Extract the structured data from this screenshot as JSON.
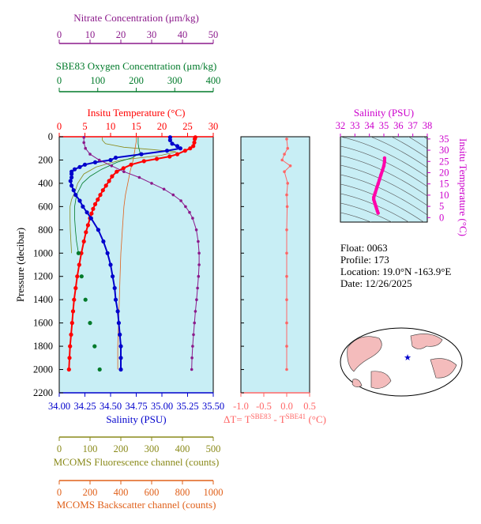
{
  "colors": {
    "nitrate": "#8b1a8b",
    "oxygen": "#007a2a",
    "temperature": "#ff0000",
    "salinity": "#0000cc",
    "fluorescence": "#8a8a1a",
    "backscatter": "#e0601a",
    "delta": "#ff6666",
    "plot_bg": "#c8eef5",
    "ts_curve": "#ff00aa",
    "ts_axes": "#cc00cc",
    "land": "#f4bcbc"
  },
  "info": {
    "float_line": "Float:  0063",
    "profile_line": "Profile:  173",
    "location_line": "Location:  19.0°N  -163.9°E",
    "date_line": "Date:  12/26/2025"
  },
  "chart_data": [
    {
      "type": "line",
      "title": "",
      "ylabel": "Pressure (decibar)",
      "ylim": [
        2200,
        0
      ],
      "yticks": [
        "0",
        "200",
        "400",
        "600",
        "800",
        "1000",
        "1200",
        "1400",
        "1600",
        "1800",
        "2000",
        "2200"
      ],
      "axes": {
        "temperature": {
          "label": "Insitu Temperature (°C)",
          "ticks": [
            "0",
            "5",
            "10",
            "15",
            "20",
            "25",
            "30"
          ],
          "range": [
            0,
            30
          ]
        },
        "salinity": {
          "label": "Salinity (PSU)",
          "ticks": [
            "34.00",
            "34.25",
            "34.50",
            "34.75",
            "35.00",
            "35.25",
            "35.50"
          ],
          "range": [
            34.0,
            35.5
          ]
        },
        "nitrate": {
          "label": "Nitrate Concentration (μm/kg)",
          "ticks": [
            "0",
            "10",
            "20",
            "30",
            "40",
            "50"
          ],
          "range": [
            0,
            50
          ]
        },
        "oxygen": {
          "label": "SBE83 Oxygen Concentration (μm/kg)",
          "ticks": [
            "0",
            "100",
            "200",
            "300",
            "400"
          ],
          "range": [
            0,
            400
          ]
        },
        "fluorescence": {
          "label": "MCOMS Fluorescence channel (counts)",
          "ticks": [
            "0",
            "100",
            "200",
            "300",
            "400",
            "500"
          ],
          "range": [
            0,
            500
          ]
        },
        "backscatter": {
          "label": "MCOMS Backscatter channel (counts)",
          "ticks": [
            "0",
            "200",
            "400",
            "600",
            "800",
            "1000"
          ],
          "range": [
            0,
            1000
          ]
        }
      },
      "series": [
        {
          "key": "temperature",
          "pressure": [
            5,
            20,
            50,
            80,
            100,
            120,
            150,
            170,
            190,
            210,
            240,
            270,
            300,
            340,
            380,
            420,
            460,
            500,
            540,
            580,
            620,
            660,
            700,
            760,
            820,
            900,
            1000,
            1100,
            1200,
            1300,
            1400,
            1500,
            1600,
            1700,
            1800,
            1900,
            2000
          ],
          "values": [
            26.5,
            26.4,
            26.3,
            26.1,
            25.5,
            24.5,
            23,
            21.5,
            19,
            16.5,
            14,
            12.5,
            11.2,
            10.3,
            9.7,
            9.1,
            8.5,
            8.0,
            7.5,
            7.0,
            6.6,
            6.3,
            6.0,
            5.6,
            5.2,
            4.8,
            4.3,
            3.9,
            3.5,
            3.2,
            2.9,
            2.7,
            2.5,
            2.3,
            2.1,
            2.0,
            1.9
          ]
        },
        {
          "key": "salinity",
          "pressure": [
            5,
            30,
            60,
            80,
            100,
            120,
            150,
            180,
            200,
            220,
            240,
            260,
            280,
            300,
            320,
            350,
            380,
            420,
            460,
            500,
            550,
            600,
            650,
            700,
            800,
            900,
            1000,
            1100,
            1200,
            1300,
            1400,
            1500,
            1600,
            1700,
            1800,
            1900,
            2000
          ],
          "values": [
            35.08,
            35.08,
            35.1,
            35.15,
            35.18,
            35.05,
            34.8,
            34.55,
            34.5,
            34.35,
            34.25,
            34.2,
            34.15,
            34.12,
            34.12,
            34.12,
            34.11,
            34.12,
            34.14,
            34.16,
            34.2,
            34.23,
            34.27,
            34.31,
            34.38,
            34.43,
            34.47,
            34.5,
            34.52,
            34.54,
            34.55,
            34.57,
            34.58,
            34.59,
            34.6,
            34.6,
            34.6
          ]
        },
        {
          "key": "nitrate",
          "pressure": [
            5,
            50,
            100,
            150,
            200,
            250,
            300,
            350,
            400,
            450,
            500,
            550,
            600,
            650,
            700,
            800,
            900,
            1000,
            1100,
            1200,
            1300,
            1400,
            1500,
            1600,
            1700,
            1800,
            1900,
            2000
          ],
          "values": [
            8,
            8,
            8.5,
            10,
            13,
            17,
            21,
            26,
            30,
            34,
            37,
            39.5,
            41,
            42.3,
            43.3,
            44.5,
            45.1,
            45.4,
            45.4,
            45.2,
            44.9,
            44.6,
            44.2,
            43.9,
            43.6,
            43.3,
            43.1,
            43.0
          ]
        },
        {
          "key": "oxygen",
          "pressure": [
            1000,
            1200,
            1400,
            1600,
            1800,
            2000
          ],
          "values": [
            50,
            58,
            68,
            80,
            92,
            105
          ]
        },
        {
          "key": "delta",
          "pressure": [
            20,
            100,
            150,
            200,
            250,
            300,
            400,
            500,
            600,
            800,
            1000,
            1200,
            1400,
            1600,
            1800,
            2000
          ],
          "values": [
            0.0,
            0.02,
            -0.05,
            -0.1,
            0.08,
            -0.05,
            0.02,
            0.0,
            0.01,
            0.0,
            0.0,
            0.0,
            0.0,
            0.0,
            0.0,
            0.0
          ]
        }
      ]
    },
    {
      "type": "line",
      "title": "",
      "xlabel": "ΔT= T SBE83 - T SBE41 (°C)",
      "xlabel_parts": {
        "lead": "ΔT= T",
        "sup1": "SBE83",
        "mid": " - T",
        "sup2": "SBE41",
        "tail": " (°C)"
      },
      "xticks": [
        "-1.0",
        "-0.5",
        "0.0",
        "0.5"
      ],
      "xlim": [
        -1.0,
        0.5
      ]
    },
    {
      "type": "scatter",
      "title": "",
      "xlabel": "Salinity (PSU)",
      "ylabel": "Insitu Temperature (°C)",
      "xticks": [
        "32",
        "33",
        "34",
        "35",
        "36",
        "37",
        "38"
      ],
      "yticks": [
        "0",
        "5",
        "10",
        "15",
        "20",
        "25",
        "30",
        "35"
      ],
      "xlim": [
        32,
        38
      ],
      "ylim": [
        -2,
        36
      ],
      "series": [
        {
          "name": "",
          "x": [
            34.6,
            34.55,
            34.5,
            34.45,
            34.4,
            34.35,
            34.3,
            34.3,
            34.35,
            34.4,
            34.5,
            34.6,
            34.7,
            34.8,
            34.9,
            35.0,
            35.05,
            35.05
          ],
          "y": [
            2,
            3,
            4,
            5,
            6,
            7,
            8,
            9,
            10,
            11,
            13,
            15,
            17,
            19,
            21,
            23,
            25,
            26.5
          ]
        }
      ]
    }
  ]
}
